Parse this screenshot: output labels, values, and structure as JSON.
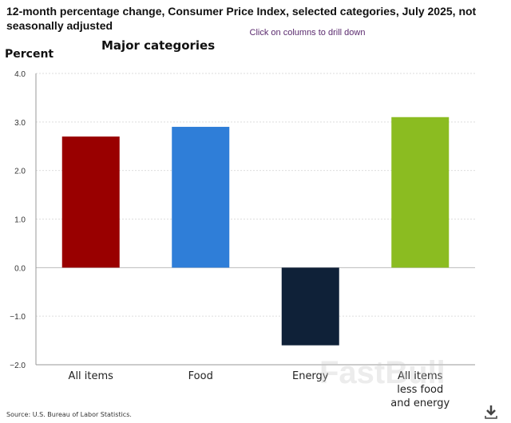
{
  "title": "12-month percentage change, Consumer Price Index, selected categories, July 2025, not seasonally adjusted",
  "drill_hint": "Click on columns to drill down",
  "source": "Source: U.S. Bureau of Labor Statistics.",
  "watermark": "FastBull",
  "chart_data": {
    "type": "bar",
    "title": "Major categories",
    "ylabel": "Percent",
    "xlabel": "",
    "categories": [
      "All items",
      "Food",
      "Energy",
      "All items less food and energy"
    ],
    "category_lines": [
      [
        "All items"
      ],
      [
        "Food"
      ],
      [
        "Energy"
      ],
      [
        "All items",
        "less food",
        "and energy"
      ]
    ],
    "values": [
      2.7,
      2.9,
      -1.6,
      3.1
    ],
    "colors": [
      "#990000",
      "#2f7ed8",
      "#0f2138",
      "#8bbc21"
    ],
    "ylim": [
      -2.0,
      4.0
    ],
    "yticks": [
      "4.0",
      "3.0",
      "2.0",
      "1.0",
      "0.0",
      "−1.0",
      "−2.0"
    ],
    "grid": true
  }
}
